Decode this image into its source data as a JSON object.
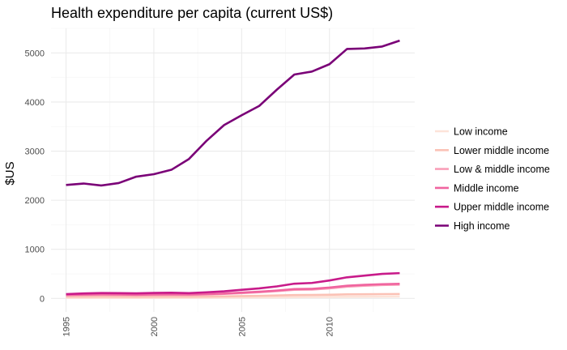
{
  "chart_data": {
    "type": "line",
    "title": "Health expenditure per capita (current US$)",
    "xlabel": "",
    "ylabel": "$US",
    "xlim": [
      1995,
      2014
    ],
    "ylim": [
      0,
      5500
    ],
    "x_ticks": [
      1995,
      2000,
      2005,
      2010
    ],
    "x_tick_labels": [
      "1995",
      "2000",
      "2005",
      "2010"
    ],
    "y_ticks": [
      0,
      1000,
      2000,
      3000,
      4000,
      5000
    ],
    "y_tick_labels": [
      "0",
      "1000",
      "2000",
      "3000",
      "4000",
      "5000"
    ],
    "grid": true,
    "legend_position": "right",
    "x": [
      1995,
      1996,
      1997,
      1998,
      1999,
      2000,
      2001,
      2002,
      2003,
      2004,
      2005,
      2006,
      2007,
      2008,
      2009,
      2010,
      2011,
      2012,
      2013,
      2014
    ],
    "series": [
      {
        "name": "Low income",
        "color": "#fde3d9",
        "values": [
          10,
          11,
          11,
          11,
          11,
          11,
          12,
          13,
          14,
          16,
          18,
          20,
          23,
          27,
          29,
          32,
          34,
          36,
          38,
          40
        ]
      },
      {
        "name": "Lower middle income",
        "color": "#fbc2b6",
        "values": [
          35,
          36,
          37,
          36,
          34,
          35,
          35,
          35,
          38,
          42,
          47,
          53,
          60,
          68,
          70,
          75,
          82,
          85,
          88,
          90
        ]
      },
      {
        "name": "Low & middle income",
        "color": "#f99fb8",
        "values": [
          65,
          70,
          75,
          72,
          68,
          72,
          74,
          72,
          80,
          92,
          108,
          125,
          148,
          175,
          180,
          205,
          240,
          258,
          272,
          280
        ]
      },
      {
        "name": "Middle income",
        "color": "#f0649f",
        "values": [
          72,
          78,
          82,
          80,
          75,
          80,
          82,
          80,
          88,
          100,
          118,
          136,
          160,
          190,
          195,
          222,
          258,
          276,
          290,
          298
        ]
      },
      {
        "name": "Upper middle income",
        "color": "#c81b8a",
        "values": [
          88,
          102,
          110,
          107,
          103,
          112,
          115,
          108,
          125,
          145,
          175,
          205,
          245,
          300,
          315,
          365,
          430,
          465,
          500,
          515
        ]
      },
      {
        "name": "High income",
        "color": "#7a0177",
        "values": [
          2310,
          2340,
          2300,
          2350,
          2480,
          2530,
          2620,
          2840,
          3210,
          3530,
          3730,
          3920,
          4250,
          4560,
          4620,
          4770,
          5080,
          5090,
          5130,
          5250
        ]
      }
    ]
  }
}
